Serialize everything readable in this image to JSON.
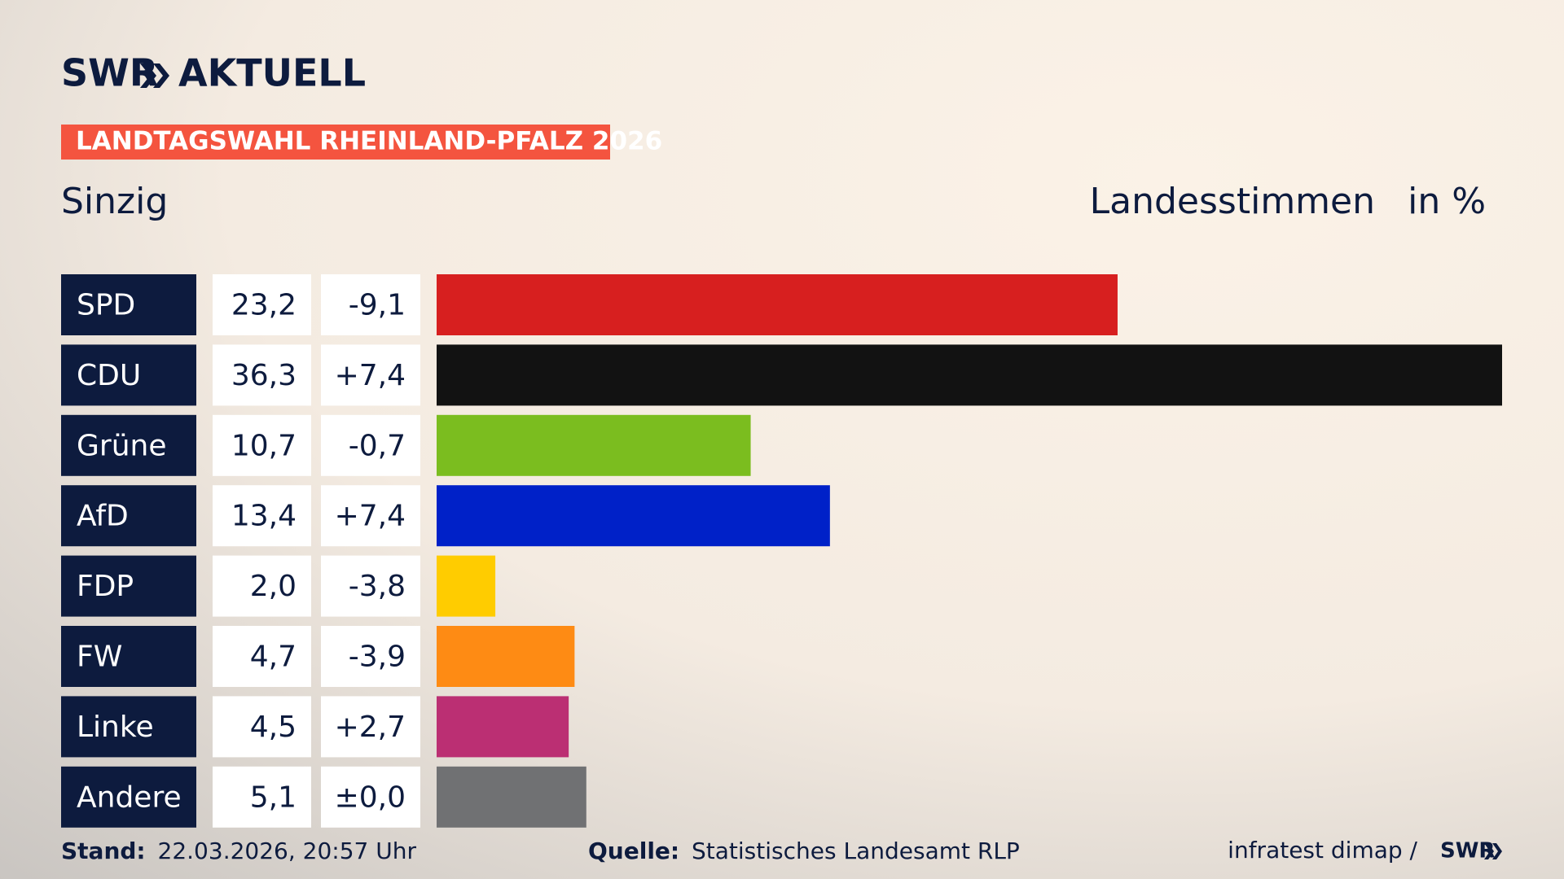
{
  "header": {
    "logo": "SWR",
    "logo_section": "AKTUELL",
    "banner": "LANDTAGSWAHL RHEINLAND-PFALZ 2026",
    "place": "Sinzig",
    "measure": "Landesstimmen",
    "unit": "in %"
  },
  "chart_data": {
    "type": "hbar",
    "categories": [
      "SPD",
      "CDU",
      "Grüne",
      "AfD",
      "FDP",
      "FW",
      "Linke",
      "Andere"
    ],
    "values": [
      23.2,
      36.3,
      10.7,
      13.4,
      2.0,
      4.7,
      4.5,
      5.1
    ],
    "value_labels": [
      "23,2",
      "36,3",
      "10,7",
      "13,4",
      "2,0",
      "4,7",
      "4,5",
      "5,1"
    ],
    "changes": [
      -9.1,
      7.4,
      -0.7,
      7.4,
      -3.8,
      -3.9,
      2.7,
      0.0
    ],
    "change_labels": [
      "-9,1",
      "+7,4",
      "-0,7",
      "+7,4",
      "-3,8",
      "-3,9",
      "+2,7",
      "±0,0"
    ],
    "colors": [
      "#d71f1f",
      "#121212",
      "#7bbd1f",
      "#0021c8",
      "#ffcc00",
      "#fe8b14",
      "#bb2f73",
      "#707173"
    ]
  },
  "footer": {
    "stand_label": "Stand:",
    "stand": "22.03.2026, 20:57 Uhr",
    "source_label": "Quelle:",
    "source": "Statistisches Landesamt RLP",
    "credit": "infratest dimap /",
    "credit_logo": "SWR"
  }
}
